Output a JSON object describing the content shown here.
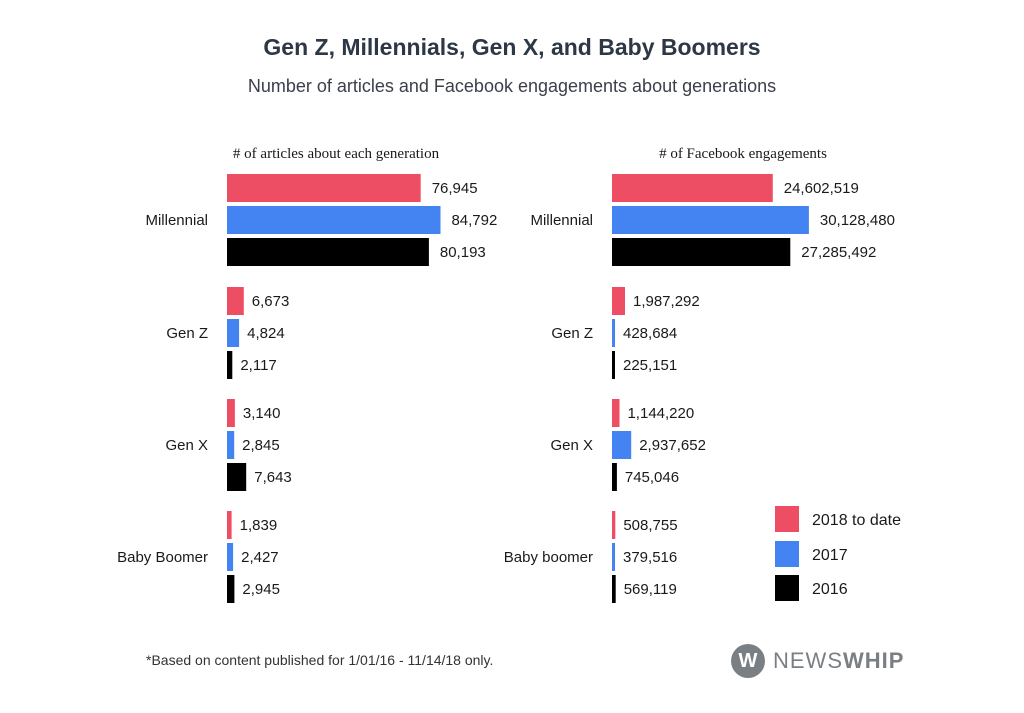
{
  "header": {
    "title": "Gen Z, Millennials, Gen X, and Baby Boomers",
    "subtitle": "Number of articles and Facebook engagements about generations"
  },
  "colors": {
    "2018": "#ee4e63",
    "2017": "#4384f2",
    "2016": "#000000"
  },
  "legend": {
    "items": [
      "2018 to date",
      "2017",
      "2016"
    ]
  },
  "footnote": "*Based on content published for 1/01/16 - 11/14/18 only.",
  "brand": {
    "logo_letter": "W",
    "name_light": "NEWS",
    "name_bold": "WHIP"
  },
  "chart_data": [
    {
      "type": "bar",
      "orientation": "horizontal",
      "title": "# of articles about each generation",
      "categories": [
        "Millennial",
        "Gen Z",
        "Gen X",
        "Baby Boomer"
      ],
      "xlim": [
        0,
        90000
      ],
      "series": [
        {
          "name": "2018 to date",
          "values": [
            76945,
            6673,
            3140,
            1839
          ],
          "labels": [
            "76,945",
            "6,673",
            "3,140",
            "1,839"
          ]
        },
        {
          "name": "2017",
          "values": [
            84792,
            4824,
            2845,
            2427
          ],
          "labels": [
            "84,792",
            "4,824",
            "2,845",
            "2,427"
          ]
        },
        {
          "name": "2016",
          "values": [
            80193,
            2117,
            7643,
            2945
          ],
          "labels": [
            "80,193",
            "2,117",
            "7,643",
            "2,945"
          ]
        }
      ]
    },
    {
      "type": "bar",
      "orientation": "horizontal",
      "title": "# of Facebook engagements",
      "categories": [
        "Millennial",
        "Gen Z",
        "Gen X",
        "Baby boomer"
      ],
      "xlim": [
        0,
        33000000
      ],
      "series": [
        {
          "name": "2018 to date",
          "values": [
            24602519,
            1987292,
            1144220,
            508755
          ],
          "labels": [
            "24,602,519",
            "1,987,292",
            "1,144,220",
            "508,755"
          ]
        },
        {
          "name": "2017",
          "values": [
            30128480,
            428684,
            2937652,
            379516
          ],
          "labels": [
            "30,128,480",
            "428,684",
            "2,937,652",
            "379,516"
          ]
        },
        {
          "name": "2016",
          "values": [
            27285492,
            225151,
            745046,
            569119
          ],
          "labels": [
            "27,285,492",
            "225,151",
            "745,046",
            "569,119"
          ]
        }
      ]
    }
  ]
}
